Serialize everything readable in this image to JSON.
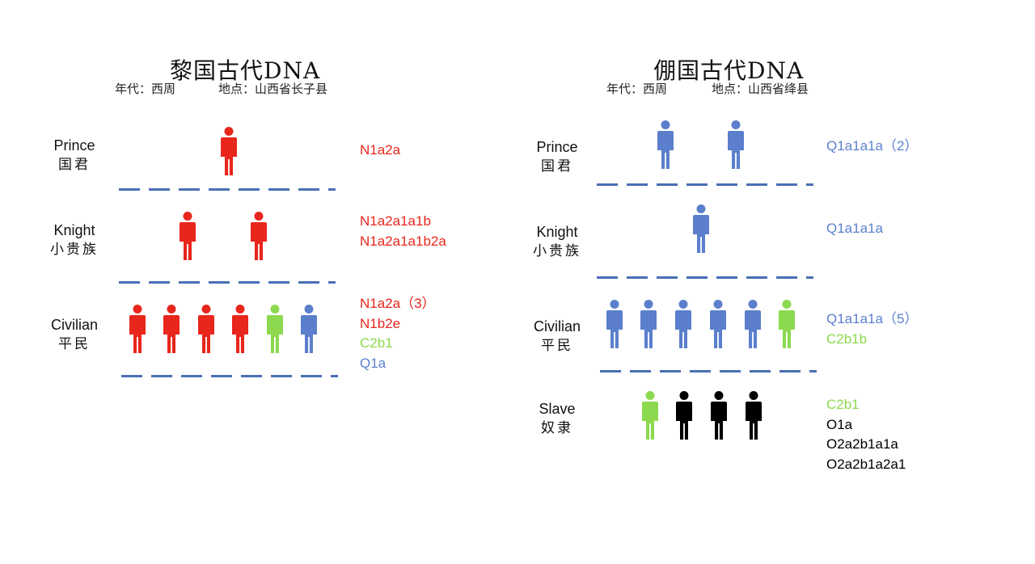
{
  "colors": {
    "red": "#e8261c",
    "blue": "#5b7fcc",
    "green": "#8cd94f",
    "black": "#000000",
    "divider": "#4a6fb5"
  },
  "panels": [
    {
      "title": "黎国古代DNA",
      "era": "年代：西周",
      "location": "地点：山西省长子县",
      "ranks": [
        {
          "en": "Prince",
          "zh": "国君",
          "figures": [
            "red"
          ],
          "haplogroups": [
            {
              "text": "N1a2a",
              "color": "red"
            }
          ]
        },
        {
          "en": "Knight",
          "zh": "小贵族",
          "figures": [
            "red",
            "red"
          ],
          "haplogroups": [
            {
              "text": "N1a2a1a1b",
              "color": "red"
            },
            {
              "text": "N1a2a1a1b2a",
              "color": "red"
            }
          ]
        },
        {
          "en": "Civilian",
          "zh": "平民",
          "figures": [
            "red",
            "red",
            "red",
            "red",
            "green",
            "blue"
          ],
          "haplogroups": [
            {
              "text": "N1a2a（3）",
              "color": "red"
            },
            {
              "text": "N1b2e",
              "color": "red"
            },
            {
              "text": "C2b1",
              "color": "green"
            },
            {
              "text": "Q1a",
              "color": "blue"
            }
          ]
        }
      ]
    },
    {
      "title": "倗国古代DNA",
      "era": "年代：西周",
      "location": "地点：山西省绛县",
      "ranks": [
        {
          "en": "Prince",
          "zh": "国君",
          "figures": [
            "blue",
            "blue"
          ],
          "haplogroups": [
            {
              "text": "Q1a1a1a（2）",
              "color": "blue"
            }
          ]
        },
        {
          "en": "Knight",
          "zh": "小贵族",
          "figures": [
            "blue"
          ],
          "haplogroups": [
            {
              "text": "Q1a1a1a",
              "color": "blue"
            }
          ]
        },
        {
          "en": "Civilian",
          "zh": "平民",
          "figures": [
            "blue",
            "blue",
            "blue",
            "blue",
            "blue",
            "green"
          ],
          "haplogroups": [
            {
              "text": "Q1a1a1a（5）",
              "color": "blue"
            },
            {
              "text": "C2b1b",
              "color": "green"
            }
          ]
        },
        {
          "en": "Slave",
          "zh": "奴隶",
          "figures": [
            "green",
            "black",
            "black",
            "black"
          ],
          "haplogroups": [
            {
              "text": "C2b1",
              "color": "green"
            },
            {
              "text": "O1a",
              "color": "black"
            },
            {
              "text": "O2a2b1a1a",
              "color": "black"
            },
            {
              "text": "O2a2b1a2a1",
              "color": "black"
            }
          ]
        }
      ]
    }
  ]
}
